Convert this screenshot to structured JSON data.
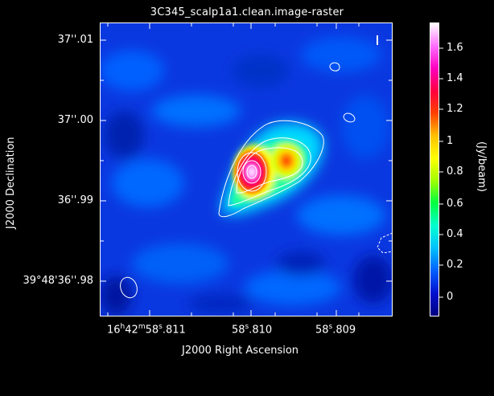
{
  "title": "3C345_scalp1a1.clean.image-raster",
  "axes": {
    "ylabel": "J2000 Declination",
    "xlabel": "J2000 Right Ascension",
    "yticks": [
      "37''.01",
      "37''.00",
      "36''.99",
      "39°48'36''.98"
    ],
    "xticks": [
      {
        "pre": "16",
        "h": "h",
        "m_pre": "42",
        "m": "m",
        "post": "58",
        "s": "s",
        ".811": ".811"
      },
      {
        "pre": "",
        "post": "58",
        "s": "s",
        "frac": ".810"
      },
      {
        "pre": "",
        "post": "58",
        "s": "s",
        "frac": ".809"
      }
    ],
    "xtick_text": [
      "16h42m58s.811",
      "58s.810",
      "58s.809"
    ]
  },
  "colorbar": {
    "unit": "(Jy/beam)",
    "labels": [
      "1.6",
      "1.4",
      "1.2",
      "1",
      "0.8",
      "0.6",
      "0.4",
      "0.2",
      "0"
    ],
    "colors": [
      "#ffffff",
      "#ff70ff",
      "#ff00c0",
      "#ff0040",
      "#ff4000",
      "#ffc000",
      "#ffff00",
      "#a0ff00",
      "#00ff40",
      "#00ffd0",
      "#00c0ff",
      "#0060ff",
      "#0010d0",
      "#000080"
    ]
  }
}
